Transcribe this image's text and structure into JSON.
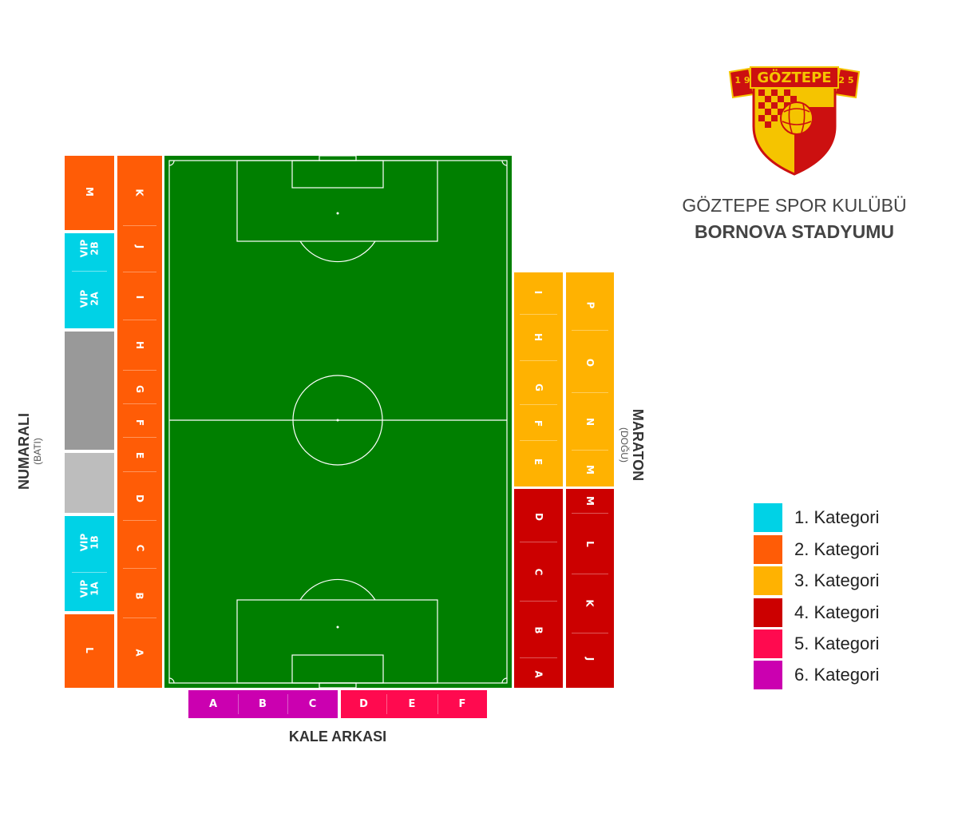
{
  "club": {
    "name": "GÖZTEPE SPOR KULÜBÜ",
    "stadium": "BORNOVA STADYUMU",
    "logo": {
      "banner_text": "GÖZTEPE",
      "year_left": "1 9",
      "year_right": "2 5"
    }
  },
  "stands": {
    "west": {
      "title": "NUMARALI",
      "subtitle": "(BATI)"
    },
    "east": {
      "title": "MARATON",
      "subtitle": "(DOĞU)"
    },
    "south": {
      "title": "KALE ARKASI"
    }
  },
  "west_outer": {
    "M": "M",
    "vip_2b": [
      "VIP",
      "2B"
    ],
    "vip_2a": [
      "VIP",
      "2A"
    ],
    "vip_1b": [
      "VIP",
      "1B"
    ],
    "vip_1a": [
      "VIP",
      "1A"
    ],
    "L": "L"
  },
  "west_inner": [
    "K",
    "J",
    "I",
    "H",
    "G",
    "F",
    "E",
    "D",
    "C",
    "B",
    "A"
  ],
  "east_inner_cat3": [
    "I",
    "H",
    "G",
    "F",
    "E"
  ],
  "east_inner_cat4": [
    "D",
    "C",
    "B",
    "A"
  ],
  "east_outer_cat3": [
    "P",
    "O",
    "N",
    "M"
  ],
  "east_outer_cat4": [
    "M",
    "L",
    "K",
    "J"
  ],
  "south_cat6": [
    "A",
    "B",
    "C"
  ],
  "south_cat5": [
    "D",
    "E",
    "F"
  ],
  "legend": [
    {
      "label": "1. Kategori",
      "color": "#00d2e6"
    },
    {
      "label": "2. Kategori",
      "color": "#ff5c06"
    },
    {
      "label": "3. Kategori",
      "color": "#ffb201"
    },
    {
      "label": "4. Kategori",
      "color": "#cc0000"
    },
    {
      "label": "5. Kategori",
      "color": "#ff0a4f"
    },
    {
      "label": "6. Kategori",
      "color": "#cb00b0"
    }
  ],
  "colors": {
    "pitch": "#007f00",
    "unassigned_dark": "#999999",
    "unassigned_light": "#bdbdbd"
  }
}
